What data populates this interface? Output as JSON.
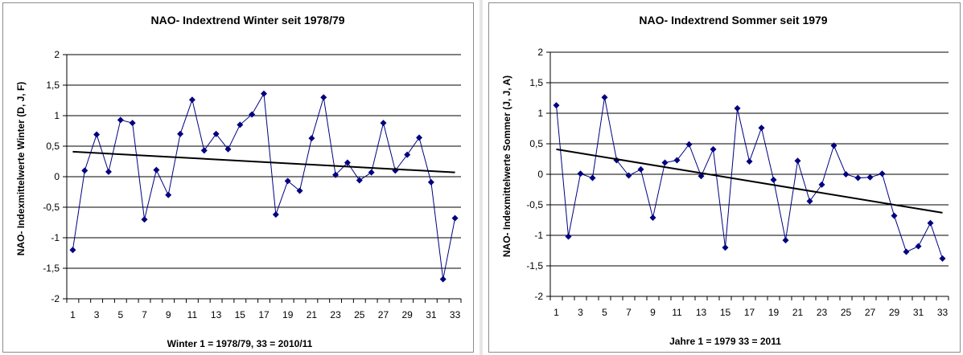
{
  "chart_data": [
    {
      "type": "line",
      "title": "NAO- Indextrend Winter seit 1978/79",
      "xlabel": "Winter 1 = 1978/79, 33 = 2010/11",
      "ylabel": "NAO- Indexmittelwerte Winter (D, J, F)",
      "ylim": [
        -2,
        2
      ],
      "yticks": [
        "2",
        "1,5",
        "1",
        "0,5",
        "0",
        "-0,5",
        "-1",
        "-1,5",
        "-2"
      ],
      "ytick_values": [
        2,
        1.5,
        1,
        0.5,
        0,
        -0.5,
        -1,
        -1.5,
        -2
      ],
      "xticks": [
        "1",
        "3",
        "5",
        "7",
        "9",
        "11",
        "13",
        "15",
        "17",
        "19",
        "21",
        "23",
        "25",
        "27",
        "29",
        "31",
        "33"
      ],
      "x": [
        1,
        2,
        3,
        4,
        5,
        6,
        7,
        8,
        9,
        10,
        11,
        12,
        13,
        14,
        15,
        16,
        17,
        18,
        19,
        20,
        21,
        22,
        23,
        24,
        25,
        26,
        27,
        28,
        29,
        30,
        31,
        32,
        33
      ],
      "series": [
        {
          "values": [
            -1.2,
            0.1,
            0.69,
            0.08,
            0.93,
            0.88,
            -0.7,
            0.11,
            -0.3,
            0.7,
            1.26,
            0.43,
            0.7,
            0.45,
            0.85,
            1.02,
            1.36,
            -0.62,
            -0.07,
            -0.23,
            0.63,
            1.3,
            0.03,
            0.23,
            -0.06,
            0.07,
            0.88,
            0.1,
            0.36,
            0.64,
            -0.09,
            -1.68,
            -0.68
          ],
          "color": "#000080"
        }
      ],
      "trendline": {
        "start": [
          1,
          0.41
        ],
        "end": [
          33,
          0.07
        ],
        "color": "#000000"
      },
      "grid": true,
      "legend": "none"
    },
    {
      "type": "line",
      "title": "NAO- Indextrend Sommer seit 1979",
      "xlabel": "Jahre 1 = 1979 33 = 2011",
      "ylabel": "NAO- Indexmittelwerte Sommer (J, J, A)",
      "ylim": [
        -2,
        2
      ],
      "yticks": [
        "2",
        "1,5",
        "1",
        "0,5",
        "0",
        "-0,5",
        "-1",
        "-1,5",
        "-2"
      ],
      "ytick_values": [
        2,
        1.5,
        1,
        0.5,
        0,
        -0.5,
        -1,
        -1.5,
        -2
      ],
      "xticks": [
        "1",
        "3",
        "5",
        "7",
        "9",
        "11",
        "13",
        "15",
        "17",
        "19",
        "21",
        "23",
        "25",
        "27",
        "29",
        "31",
        "33"
      ],
      "x": [
        1,
        2,
        3,
        4,
        5,
        6,
        7,
        8,
        9,
        10,
        11,
        12,
        13,
        14,
        15,
        16,
        17,
        18,
        19,
        20,
        21,
        22,
        23,
        24,
        25,
        26,
        27,
        28,
        29,
        30,
        31,
        32,
        33
      ],
      "series": [
        {
          "values": [
            1.13,
            -1.02,
            0.01,
            -0.06,
            1.26,
            0.23,
            -0.02,
            0.08,
            -0.71,
            0.19,
            0.23,
            0.49,
            -0.03,
            0.41,
            -1.2,
            1.08,
            0.21,
            0.76,
            -0.09,
            -1.08,
            0.22,
            -0.44,
            -0.17,
            0.47,
            0.0,
            -0.06,
            -0.05,
            0.01,
            -0.68,
            -1.27,
            -1.18,
            -0.8,
            -1.38
          ],
          "color": "#000080"
        }
      ],
      "trendline": {
        "start": [
          1,
          0.41
        ],
        "end": [
          33,
          -0.63
        ],
        "color": "#000000"
      },
      "grid": true,
      "legend": "none"
    }
  ]
}
